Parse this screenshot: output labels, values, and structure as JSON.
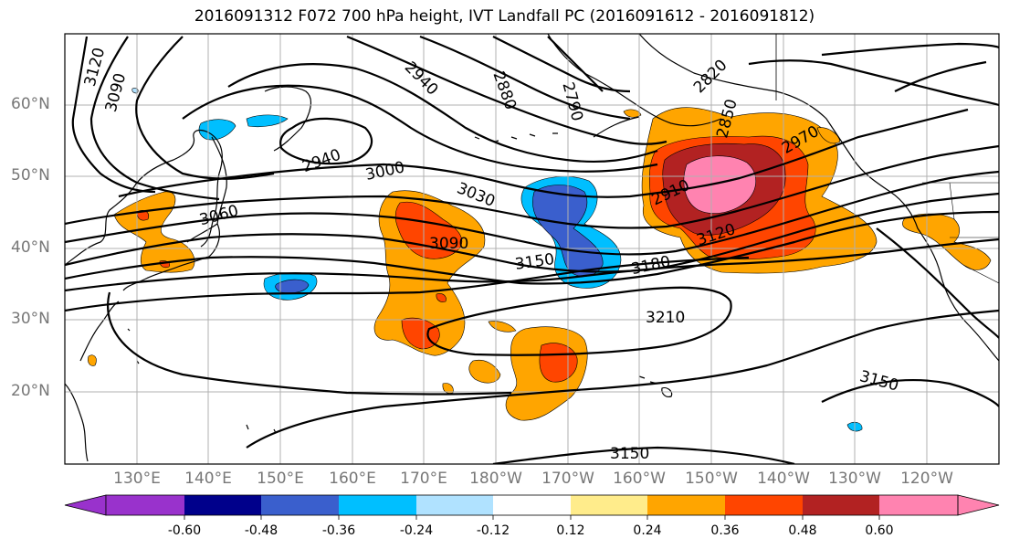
{
  "title": "2016091312 F072 700 hPa height, IVT Landfall PC (2016091612 - 2016091812)",
  "lat_labels": [
    "60°N",
    "50°N",
    "40°N",
    "30°N",
    "20°N"
  ],
  "lon_labels": [
    "130°E",
    "140°E",
    "150°E",
    "160°E",
    "170°E",
    "180°W",
    "170°W",
    "160°W",
    "150°W",
    "140°W",
    "130°W",
    "120°W"
  ],
  "contour_labels": [
    "3120",
    "3090",
    "2940",
    "2880",
    "2790",
    "2820",
    "2850",
    "2970",
    "2940",
    "3000",
    "3030",
    "3060",
    "3090",
    "2910",
    "3120",
    "3150",
    "3180",
    "3210",
    "3150",
    "3150"
  ],
  "colorbar": {
    "colors": [
      "#9932cc",
      "#00008b",
      "#3a5fcd",
      "#00bfff",
      "#b0e2ff",
      "#ffffff",
      "#ffec8b",
      "#ffa500",
      "#ff4500",
      "#b22222",
      "#ff83b0"
    ],
    "tick_labels": [
      "-0.60",
      "-0.48",
      "-0.36",
      "-0.24",
      "-0.12",
      "0.12",
      "0.24",
      "0.36",
      "0.48",
      "0.60"
    ]
  },
  "map_colors": {
    "orange": "#ffa500",
    "red_orange": "#ff4500",
    "dark_red": "#b22222",
    "pink": "#ff83b0",
    "yellow": "#ffec8b",
    "blue": "#3a5fcd",
    "sky": "#00bfff",
    "grid": "#b0b0b0"
  }
}
